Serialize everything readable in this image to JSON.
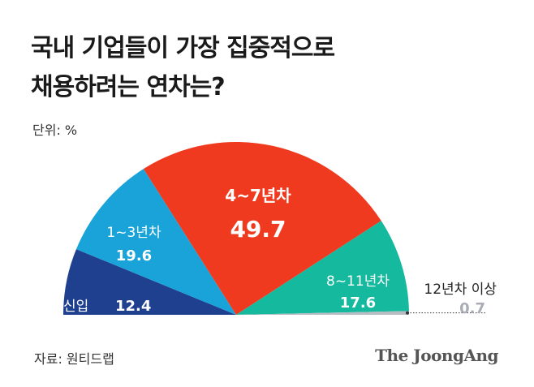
{
  "title_lines": [
    "국내 기업들이 가장 집중적으로",
    "채용하려는 연차는?"
  ],
  "unit": "단위: %",
  "source": "자료: 원티드랩",
  "brand": "The JoongAng",
  "chart_data": {
    "type": "pie",
    "shape": "half-donut",
    "categories": [
      "신입",
      "1~3년차",
      "4~7년차",
      "8~11년차",
      "12년차 이상"
    ],
    "values": [
      12.4,
      19.6,
      49.7,
      17.6,
      0.7
    ],
    "value_labels": [
      "12.4",
      "19.6",
      "49.7",
      "17.6",
      "0.7"
    ],
    "colors": [
      "#1f3f8f",
      "#19a3d8",
      "#ef3a1f",
      "#15b99e",
      "#b8bcc3"
    ]
  }
}
